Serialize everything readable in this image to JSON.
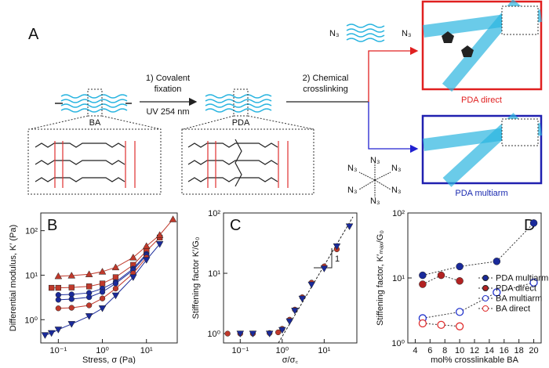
{
  "panel_a": {
    "label": "A",
    "step1": [
      "1) Covalent",
      "fixation"
    ],
    "uv": "UV 254 nm",
    "step2": [
      "2) Chemical",
      "crosslinking"
    ],
    "ba": "BA",
    "pda": "PDA",
    "direct": "PDA direct",
    "multiarm": "PDA multiarm",
    "azide_top": [
      "N₃",
      "N₃"
    ],
    "star_labels": [
      "N₃",
      "N₃",
      "N₃",
      "N₃",
      "N₃",
      "N₃"
    ]
  },
  "chart_data": [
    {
      "type": "line",
      "label": "B",
      "xlog": true,
      "ylog": true,
      "xlabel": "Stress, σ (Pa)",
      "ylabel": "Differential modulus, K′ (Pa)",
      "xlim": [
        0.04,
        50
      ],
      "ylim": [
        0.3,
        250
      ],
      "xticks": [
        {
          "value": 0.1,
          "label": "10⁻¹"
        },
        {
          "value": 1,
          "label": "10⁰"
        },
        {
          "value": 10,
          "label": "10¹"
        }
      ],
      "yticks": [
        {
          "value": 1,
          "label": "10⁰"
        },
        {
          "value": 10,
          "label": "10¹"
        },
        {
          "value": 100,
          "label": "10²"
        }
      ],
      "series": [
        {
          "color": "#c0392b",
          "marker": "square",
          "x": [
            0.07,
            0.1,
            0.2,
            0.5,
            1,
            2,
            5,
            10,
            20
          ],
          "values": [
            5.2,
            5.2,
            5.3,
            5.6,
            6.5,
            9,
            17,
            35,
            70
          ]
        },
        {
          "color": "#c0392b",
          "marker": "triangle-up",
          "x": [
            0.1,
            0.2,
            0.5,
            1,
            2,
            5,
            10,
            20,
            40
          ],
          "values": [
            9.5,
            9.8,
            10.5,
            12,
            15,
            25,
            45,
            80,
            180
          ]
        },
        {
          "color": "#1a2a9a",
          "marker": "circle",
          "x": [
            0.1,
            0.2,
            0.5,
            1,
            2,
            5,
            10
          ],
          "values": [
            3.6,
            3.7,
            4,
            5,
            7,
            14,
            30
          ]
        },
        {
          "color": "#1a2a9a",
          "marker": "circle",
          "x": [
            0.1,
            0.2,
            0.5,
            1,
            2,
            5,
            10
          ],
          "values": [
            2.8,
            2.9,
            3.2,
            4.2,
            6.5,
            13,
            28
          ]
        },
        {
          "color": "#c0392b",
          "marker": "circle",
          "x": [
            0.1,
            0.2,
            0.5,
            1,
            2,
            5,
            10
          ],
          "values": [
            1.8,
            1.85,
            2.1,
            3,
            5,
            11,
            25
          ]
        },
        {
          "color": "#1a2a9a",
          "marker": "triangle-down",
          "x": [
            0.05,
            0.07,
            0.1,
            0.2,
            0.5,
            1,
            2,
            5,
            10,
            20
          ],
          "values": [
            0.45,
            0.5,
            0.6,
            0.8,
            1.2,
            1.8,
            3.5,
            9,
            22,
            50
          ]
        }
      ]
    },
    {
      "type": "scatter",
      "label": "C",
      "xlog": true,
      "ylog": true,
      "xlabel": "σ/σ꜀",
      "ylabel": "Stiffening factor K′/G₀",
      "slope_label": "1",
      "xlim": [
        0.04,
        60
      ],
      "ylim": [
        0.7,
        100
      ],
      "xticks": [
        {
          "value": 0.1,
          "label": "10⁻¹"
        },
        {
          "value": 1,
          "label": "10⁰"
        },
        {
          "value": 10,
          "label": "10¹"
        }
      ],
      "yticks": [
        {
          "value": 1,
          "label": "10⁰"
        },
        {
          "value": 10,
          "label": "10¹"
        },
        {
          "value": 100,
          "label": "10²"
        }
      ],
      "series": [
        {
          "color": "#c0392b",
          "marker": "circle",
          "x": [
            0.05,
            0.1,
            0.2,
            0.5,
            0.8,
            1,
            1.5,
            2,
            3,
            5,
            10,
            20
          ],
          "values": [
            1,
            1,
            1,
            1.02,
            1.05,
            1.2,
            1.7,
            2.5,
            4,
            7,
            13,
            25
          ]
        },
        {
          "color": "#1a2a9a",
          "marker": "triangle-down",
          "x": [
            0.1,
            0.2,
            0.5,
            1,
            1.5,
            2,
            3,
            5,
            10,
            20,
            40
          ],
          "values": [
            1,
            1,
            1,
            1.15,
            1.6,
            2.4,
            3.8,
            6.5,
            12,
            28,
            60
          ]
        }
      ]
    },
    {
      "type": "line",
      "label": "D",
      "xlog": false,
      "ylog": true,
      "xlabel": "mol% crosslinkable BA",
      "ylabel": "Stiffening factor, K′ₘₐₓ/G₀",
      "legend": "right",
      "dashed": true,
      "xlim": [
        3,
        21
      ],
      "ylim": [
        1,
        100
      ],
      "xticks": [
        4,
        6,
        8,
        10,
        12,
        14,
        16,
        18,
        20
      ],
      "yticks": [
        {
          "value": 1,
          "label": "10⁰"
        },
        {
          "value": 10,
          "label": "10¹"
        },
        {
          "value": 100,
          "label": "10²"
        }
      ],
      "series": [
        {
          "name": "PDA multiarm",
          "color": "#1a2a9a",
          "marker": "circle",
          "filled": true,
          "x": [
            5,
            10,
            15,
            20
          ],
          "values": [
            11,
            15,
            18,
            70
          ]
        },
        {
          "name": "PDA direct",
          "color": "#b22222",
          "marker": "circle",
          "filled": true,
          "x": [
            5,
            7.5,
            10
          ],
          "values": [
            8,
            11,
            9
          ]
        },
        {
          "name": "BA multiarm",
          "color": "#2233cc",
          "marker": "circle",
          "filled": false,
          "x": [
            5,
            10,
            15,
            20
          ],
          "values": [
            2.4,
            3,
            6,
            8.5
          ]
        },
        {
          "name": "BA direct",
          "color": "#e03030",
          "marker": "circle",
          "filled": false,
          "x": [
            5,
            7.5,
            10
          ],
          "values": [
            2,
            1.9,
            1.8
          ]
        }
      ]
    }
  ]
}
